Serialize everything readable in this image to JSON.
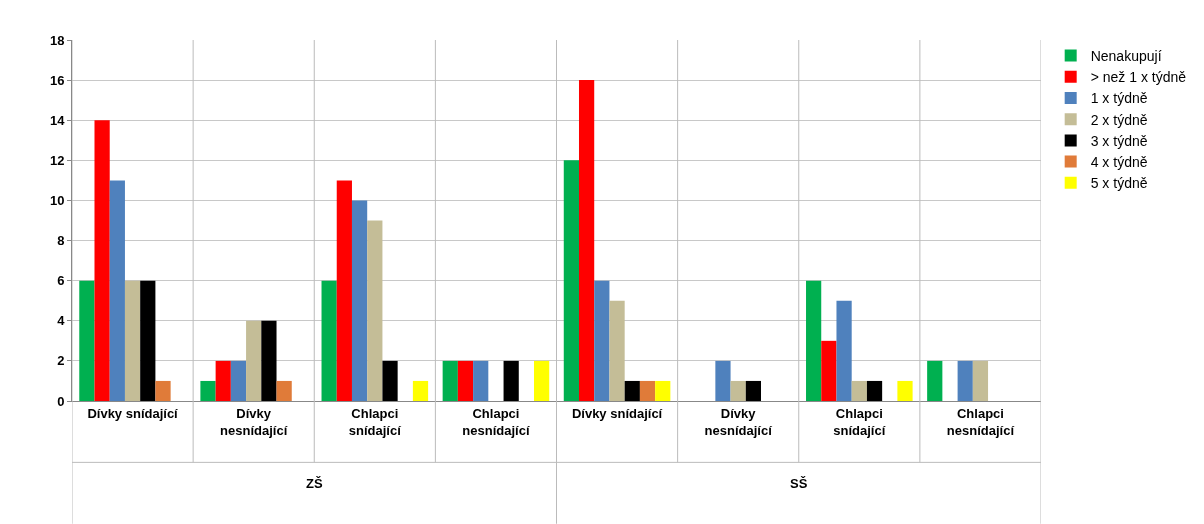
{
  "chart_data": {
    "type": "bar",
    "categories": [
      "Dívky snídající",
      "Dívky nesnídající",
      "Chlapci snídající",
      "Chlapci nesnídající",
      "Dívky snídající",
      "Dívky nesnídající",
      "Chlapci snídající",
      "Chlapci nesnídající"
    ],
    "series": [
      {
        "name": "Nenakupují",
        "color": "#00b050",
        "values": [
          6,
          1,
          6,
          2,
          12,
          0,
          6,
          2
        ]
      },
      {
        "name": "> než 1 x týdně",
        "color": "#ff0000",
        "values": [
          14,
          2,
          11,
          2,
          16,
          0,
          3,
          0
        ]
      },
      {
        "name": "1 x týdně",
        "color": "#4f81bd",
        "values": [
          11,
          2,
          10,
          2,
          6,
          2,
          5,
          2
        ]
      },
      {
        "name": "2 x týdně",
        "color": "#c4bd97",
        "values": [
          6,
          4,
          9,
          0,
          5,
          1,
          1,
          2
        ]
      },
      {
        "name": "3 x týdně",
        "color": "#000000",
        "values": [
          6,
          4,
          2,
          2,
          1,
          1,
          1,
          0
        ]
      },
      {
        "name": "4 x týdně",
        "color": "#e07b39",
        "values": [
          1,
          1,
          0,
          0,
          1,
          0,
          0,
          0
        ]
      },
      {
        "name": "5 x týdně",
        "color": "#ffff00",
        "values": [
          0,
          0,
          1,
          2,
          1,
          0,
          1,
          0
        ]
      }
    ],
    "annotations": [
      "ZŠ",
      "SŠ"
    ],
    "ylim": [
      0,
      18
    ],
    "yticks": [
      0,
      2,
      4,
      6,
      8,
      10,
      12,
      14,
      16,
      18
    ],
    "grid": "y",
    "legend": "right"
  }
}
